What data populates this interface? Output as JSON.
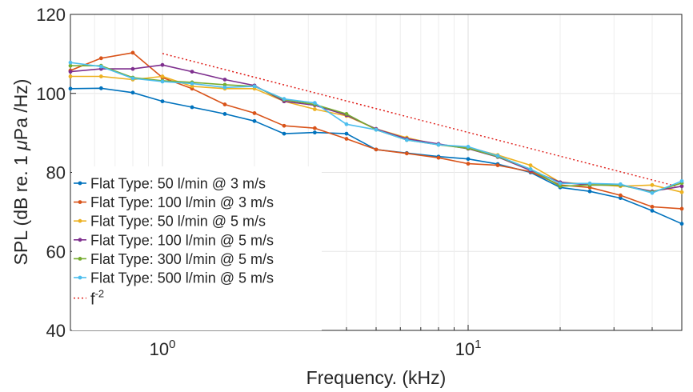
{
  "chart_data": {
    "type": "line",
    "title": "",
    "xlabel": "Frequency. (kHz)",
    "ylabel": "SPL (dB re. 1 μPa /Hz)",
    "ylabel_parts": {
      "before": "SPL (dB re. 1 ",
      "mu": "μ",
      "after": "Pa /Hz)"
    },
    "xscale": "log",
    "xlim": [
      0.5,
      50
    ],
    "ylim": [
      40,
      120
    ],
    "yticks": [
      40,
      60,
      80,
      100,
      120
    ],
    "ytick_labels": [
      "40",
      "60",
      "80",
      "100",
      "120"
    ],
    "xtick_labels": [
      {
        "value": 1,
        "base": "10",
        "exp": "0"
      },
      {
        "value": 10,
        "base": "10",
        "exp": "1"
      }
    ],
    "grid": true,
    "legend_position": "lower-left",
    "x": [
      0.5,
      0.63,
      0.8,
      1.0,
      1.25,
      1.6,
      2.0,
      2.5,
      3.15,
      4.0,
      5.0,
      6.3,
      8.0,
      10.0,
      12.5,
      16.0,
      20.0,
      25.0,
      31.5,
      40.0,
      50.0
    ],
    "series": [
      {
        "name": "Flat Type: 50 l/min @ 3 m/s",
        "color": "#0072BD",
        "values": [
          101.2,
          101.3,
          100.2,
          98.0,
          96.5,
          94.8,
          93.0,
          89.8,
          90.1,
          89.8,
          85.8,
          84.9,
          84.0,
          83.4,
          82.1,
          80.0,
          76.2,
          75.2,
          73.5,
          70.3,
          67.0
        ]
      },
      {
        "name": "Flat Type: 100 l/min @ 3 m/s",
        "color": "#D95319",
        "values": [
          105.8,
          108.9,
          110.3,
          104.0,
          101.2,
          97.2,
          95.0,
          91.8,
          91.2,
          88.5,
          85.8,
          84.8,
          83.7,
          82.2,
          81.8,
          80.2,
          76.8,
          76.2,
          74.2,
          71.3,
          70.8
        ]
      },
      {
        "name": "Flat Type: 50 l/min @ 5 m/s",
        "color": "#EDB120",
        "values": [
          104.3,
          104.3,
          103.5,
          104.3,
          101.8,
          101.2,
          101.2,
          98.0,
          96.0,
          94.3,
          91.0,
          88.8,
          87.0,
          86.3,
          84.4,
          81.8,
          77.5,
          77.0,
          76.5,
          76.8,
          75.0
        ]
      },
      {
        "name": "Flat Type: 100 l/min @ 5 m/s",
        "color": "#7E2F8E",
        "values": [
          105.5,
          106.2,
          106.2,
          107.2,
          105.5,
          103.5,
          102.0,
          98.0,
          97.0,
          94.5,
          91.0,
          88.5,
          87.2,
          86.0,
          83.9,
          80.5,
          77.5,
          76.8,
          76.8,
          75.2,
          76.5
        ]
      },
      {
        "name": "Flat Type: 300 l/min @ 5 m/s",
        "color": "#77AC30",
        "values": [
          107.0,
          107.0,
          104.0,
          103.2,
          102.8,
          102.2,
          101.8,
          98.4,
          97.2,
          94.8,
          90.8,
          88.2,
          87.0,
          86.1,
          84.0,
          80.8,
          76.5,
          76.8,
          76.8,
          75.0,
          77.3
        ]
      },
      {
        "name": "Flat Type: 500 l/min @ 5 m/s",
        "color": "#4DBEEE",
        "values": [
          107.8,
          106.8,
          103.8,
          103.0,
          102.5,
          101.5,
          101.8,
          98.6,
          97.6,
          92.2,
          90.8,
          88.2,
          87.0,
          86.5,
          84.2,
          80.8,
          77.2,
          77.2,
          77.0,
          74.8,
          77.8
        ]
      }
    ],
    "reference_line": {
      "name": "f",
      "name_sup": "-2",
      "color": "#E0201B",
      "style": "dotted",
      "x": [
        1.0,
        48.0
      ],
      "y": [
        110.1,
        76.5
      ]
    }
  }
}
